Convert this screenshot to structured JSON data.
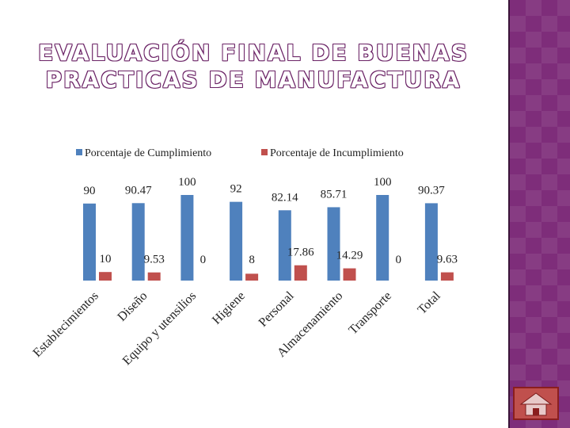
{
  "title": "EVALUACIÓN FINAL DE BUENAS PRACTICAS DE MANUFACTURA",
  "colors": {
    "blue": "#4f81bd",
    "red": "#c0504d",
    "panel": "#7e2d7a"
  },
  "icons": {
    "home": "home-icon"
  },
  "chart_data": {
    "type": "bar",
    "categories": [
      "Establecimientos",
      "Diseño",
      "Equipo y utensilios",
      "Higiene",
      "Personal",
      "Almacenamiento",
      "Transporte",
      "Total"
    ],
    "series": [
      {
        "name": "Porcentaje de Cumplimiento",
        "color": "#4f81bd",
        "values": [
          90,
          90.47,
          100,
          92,
          82.14,
          85.71,
          100,
          90.37
        ],
        "labels": [
          "90",
          "90.47",
          "100",
          "92",
          "82.14",
          "85.71",
          "100",
          "90.37"
        ]
      },
      {
        "name": "Porcentaje de Incumplimiento",
        "color": "#c0504d",
        "values": [
          10,
          9.53,
          0,
          8,
          17.86,
          14.29,
          0,
          9.63
        ],
        "labels": [
          "10",
          "9.53",
          "0",
          "8",
          "17.86",
          "14.29",
          "0",
          "9.63"
        ]
      }
    ],
    "ylim": [
      0,
      100
    ],
    "legend": "top",
    "grid": false
  }
}
